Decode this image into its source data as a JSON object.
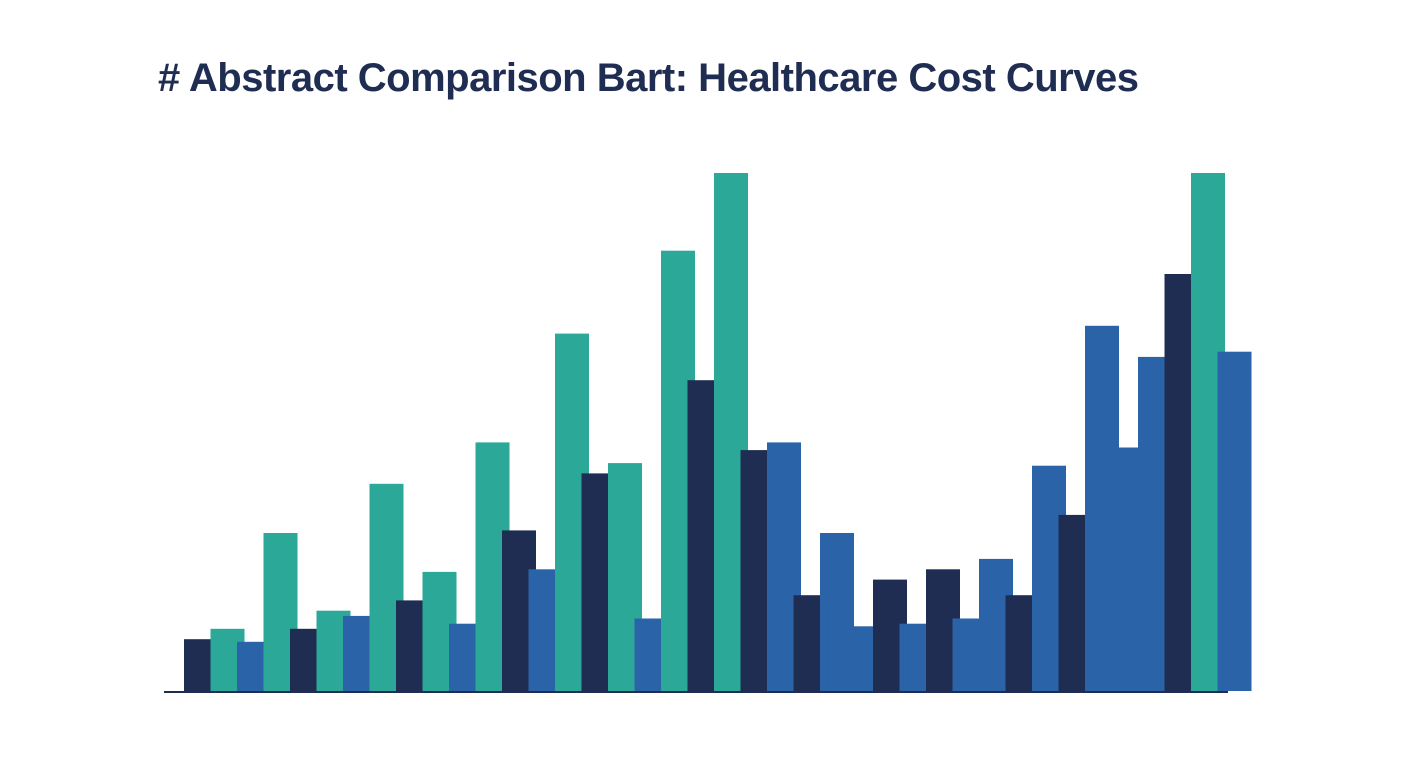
{
  "chart_data": {
    "type": "bar",
    "title": "# Abstract Comparison Bart: Healthcare Cost Curves",
    "xlabel": "",
    "ylabel": "",
    "ylim": [
      0,
      100
    ],
    "grid": false,
    "legend": "none",
    "stacking": "overlapping",
    "series_colors": [
      "#1f2d52",
      "#2ba898",
      "#2b63a8"
    ],
    "bars": [
      {
        "group": 1,
        "series": 0,
        "value": 10
      },
      {
        "group": 1,
        "series": 1,
        "value": 12
      },
      {
        "group": 1,
        "series": 2,
        "value": 9.5
      },
      {
        "group": 1,
        "series": 1,
        "value": 30.5
      },
      {
        "group": 2,
        "series": 0,
        "value": 12
      },
      {
        "group": 2,
        "series": 1,
        "value": 15.5
      },
      {
        "group": 2,
        "series": 2,
        "value": 14.5
      },
      {
        "group": 2,
        "series": 1,
        "value": 40
      },
      {
        "group": 3,
        "series": 0,
        "value": 17.5
      },
      {
        "group": 3,
        "series": 1,
        "value": 23
      },
      {
        "group": 3,
        "series": 2,
        "value": 13
      },
      {
        "group": 3,
        "series": 1,
        "value": 48
      },
      {
        "group": 3,
        "series": 0,
        "value": 31
      },
      {
        "group": 3,
        "series": 2,
        "value": 23.5
      },
      {
        "group": 4,
        "series": 1,
        "value": 69
      },
      {
        "group": 4,
        "series": 0,
        "value": 42
      },
      {
        "group": 4,
        "series": 1,
        "value": 44
      },
      {
        "group": 4,
        "series": 2,
        "value": 14
      },
      {
        "group": 4,
        "series": 1,
        "value": 85
      },
      {
        "group": 5,
        "series": 0,
        "value": 60
      },
      {
        "group": 5,
        "series": 1,
        "value": 100
      },
      {
        "group": 5,
        "series": 0,
        "value": 46.5
      },
      {
        "group": 5,
        "series": 2,
        "value": 48
      },
      {
        "group": 6,
        "series": 0,
        "value": 18.5
      },
      {
        "group": 6,
        "series": 2,
        "value": 30.5
      },
      {
        "group": 6,
        "series": 2,
        "value": 12.5
      },
      {
        "group": 6,
        "series": 0,
        "value": 21.5
      },
      {
        "group": 6,
        "series": 2,
        "value": 13
      },
      {
        "group": 6,
        "series": 0,
        "value": 23.5
      },
      {
        "group": 7,
        "series": 2,
        "value": 14
      },
      {
        "group": 7,
        "series": 2,
        "value": 25.5
      },
      {
        "group": 7,
        "series": 0,
        "value": 18.5
      },
      {
        "group": 7,
        "series": 2,
        "value": 43.5
      },
      {
        "group": 7,
        "series": 0,
        "value": 34
      },
      {
        "group": 7,
        "series": 2,
        "value": 70.5
      },
      {
        "group": 8,
        "series": 2,
        "value": 47
      },
      {
        "group": 8,
        "series": 2,
        "value": 64.5
      },
      {
        "group": 8,
        "series": 0,
        "value": 80.5
      },
      {
        "group": 8,
        "series": 1,
        "value": 100
      },
      {
        "group": 8,
        "series": 2,
        "value": 65.5
      }
    ]
  },
  "style": {
    "title_color": "#1f2d52",
    "axis_color": "#1f2d52"
  }
}
